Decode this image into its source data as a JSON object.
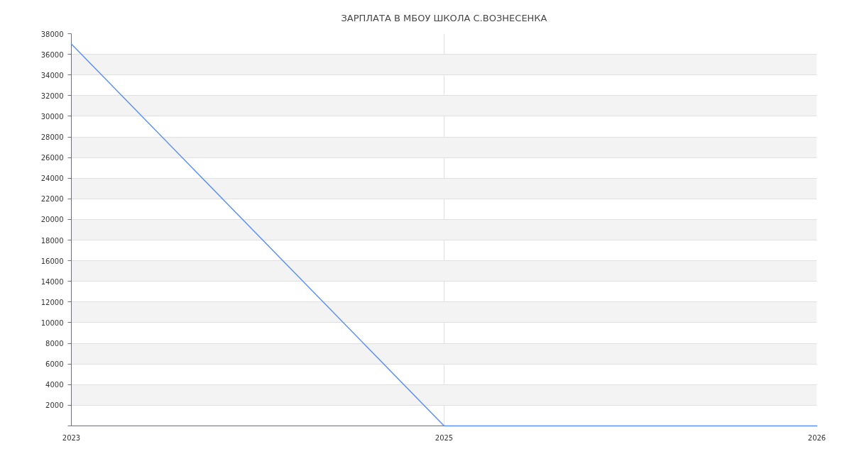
{
  "chart_data": {
    "type": "line",
    "title": "ЗАРПЛАТА В МБОУ ШКОЛА С.ВОЗНЕСЕНКА",
    "categories": [
      "2023",
      "2025",
      "2026"
    ],
    "series": [
      {
        "color": "#5b8ff9",
        "values": [
          37000,
          0,
          0
        ]
      }
    ],
    "ylim": [
      0,
      38000
    ],
    "yticks": [
      {
        "value": 0,
        "label": null
      },
      2000,
      4000,
      6000,
      8000,
      10000,
      12000,
      14000,
      16000,
      18000,
      20000,
      22000,
      24000,
      26000,
      28000,
      30000,
      32000,
      34000,
      36000,
      38000
    ],
    "grid": true
  }
}
